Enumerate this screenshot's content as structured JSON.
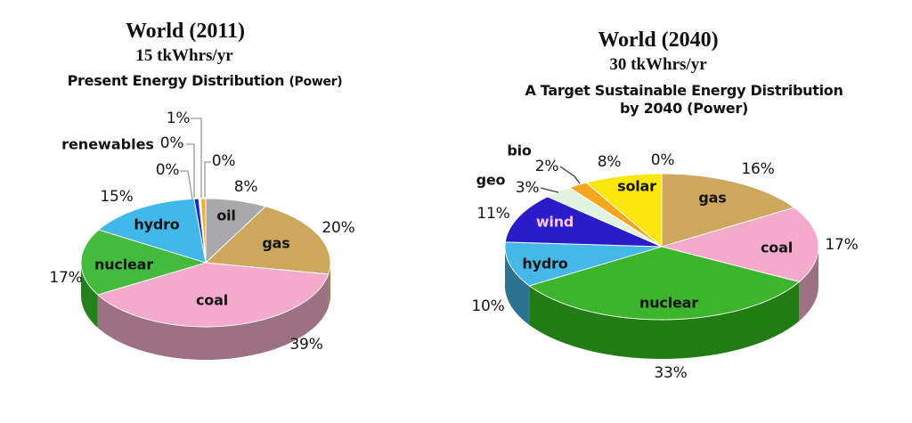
{
  "figure": {
    "description_left": "Present world energy distribution pie chart",
    "description_right": "Target sustainable energy distribution pie chart"
  },
  "chart_data": [
    {
      "type": "pie",
      "title_line1": "World (2011)",
      "title_line2": "15 tkWhrs/yr",
      "subtitle_main": "Present Energy Distribution",
      "subtitle_paren": "(Power)",
      "group_label": "renewables",
      "unit": "percent of total power",
      "legend": "none (labels on slices with leader lines for small slices)",
      "slices": [
        {
          "label": "oil",
          "pct_label": "8%",
          "value": 8,
          "color": "#a9a9ab"
        },
        {
          "label": "gas",
          "pct_label": "20%",
          "value": 20,
          "color": "#cda75c",
          "side": "#9c7e3e"
        },
        {
          "label": "coal",
          "pct_label": "39%",
          "value": 39,
          "color": "#f6aacb",
          "side": "#9d7083"
        },
        {
          "label": "nuclear",
          "pct_label": "17%",
          "value": 17,
          "color": "#43bb3e",
          "side": "#23811b"
        },
        {
          "label": "hydro",
          "pct_label": "15%",
          "value": 15,
          "color": "#41b7ea",
          "side": "#2b7391"
        },
        {
          "label": "",
          "group": "renewables",
          "pct_label": "1%",
          "value": 1,
          "color": "#1b2fbe",
          "draw": 0.6
        },
        {
          "label": "",
          "group": "renewables",
          "pct_label": "0%",
          "value": 0,
          "color": "#eef2cf",
          "draw": 0.25
        },
        {
          "label": "",
          "group": "renewables",
          "pct_label": "0%",
          "value": 0,
          "color": "#efaf35",
          "draw": 0.65
        },
        {
          "label": "",
          "group": "renewables",
          "pct_label": "0%",
          "value": 0,
          "color": "#ffe800",
          "draw": 0
        }
      ]
    },
    {
      "type": "pie",
      "title_line1": "World (2040)",
      "title_line2": "30 tkWhrs/yr",
      "subtitle_line1": "A Target Sustainable Energy Distribution",
      "subtitle_line2": "by 2040 (Power)",
      "unit": "percent of total power",
      "legend": "none (labels on slices with leader lines for small slices)",
      "slices": [
        {
          "label": "",
          "pct_label": "0%",
          "value": 0,
          "color": "#a9a9ab",
          "draw": 0
        },
        {
          "label": "gas",
          "pct_label": "16%",
          "value": 16,
          "color": "#cda75c",
          "side": "#9c7e3e"
        },
        {
          "label": "coal",
          "pct_label": "17%",
          "value": 17,
          "color": "#f6aacb",
          "side": "#9d7083"
        },
        {
          "label": "nuclear",
          "pct_label": "33%",
          "value": 33,
          "color": "#3cb42c",
          "side": "#217c13"
        },
        {
          "label": "hydro",
          "pct_label": "10%",
          "value": 10,
          "color": "#45b8e8",
          "side": "#2b7391"
        },
        {
          "label": "wind",
          "pct_label": "11%",
          "value": 11,
          "color": "#2a1cc8"
        },
        {
          "label": "geo",
          "pct_label": "3%",
          "value": 3,
          "color": "#dff3e0"
        },
        {
          "label": "bio",
          "pct_label": "2%",
          "value": 2,
          "color": "#f2a71f"
        },
        {
          "label": "solar",
          "pct_label": "8%",
          "value": 8,
          "color": "#fde60b"
        }
      ]
    }
  ]
}
